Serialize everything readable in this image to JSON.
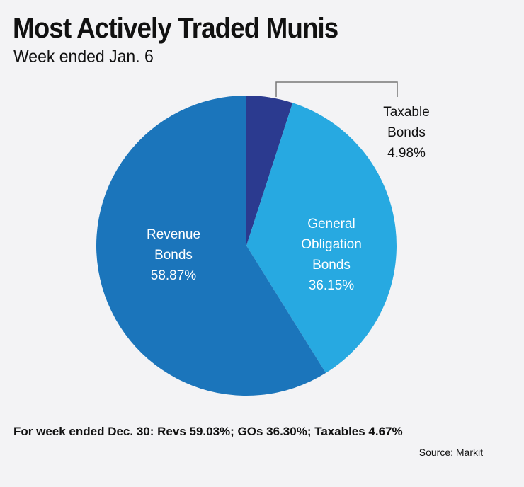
{
  "title": "Most Actively Traded Munis",
  "subtitle": "Week ended Jan. 6",
  "footnote": "For week ended Dec. 30: Revs 59.03%; GOs 36.30%; Taxables 4.67%",
  "source": "Source: Markit",
  "chart_data": {
    "type": "pie",
    "title": "Most Actively Traded Munis",
    "subtitle": "Week ended Jan. 6",
    "slices": [
      {
        "name": "Taxable Bonds",
        "label_lines": [
          "Taxable",
          "Bonds"
        ],
        "value": 4.98,
        "value_label": "4.98%",
        "color": "#2b3a8f",
        "label_color": "#111111"
      },
      {
        "name": "General Obligation Bonds",
        "label_lines": [
          "General",
          "Obligation",
          "Bonds"
        ],
        "value": 36.15,
        "value_label": "36.15%",
        "color": "#27a9e1",
        "label_color": "#ffffff"
      },
      {
        "name": "Revenue Bonds",
        "label_lines": [
          "Revenue",
          "Bonds"
        ],
        "value": 58.87,
        "value_label": "58.87%",
        "color": "#1b75bb",
        "label_color": "#ffffff"
      }
    ],
    "start": "12 o'clock",
    "direction": "clockwise",
    "legend": "none"
  }
}
